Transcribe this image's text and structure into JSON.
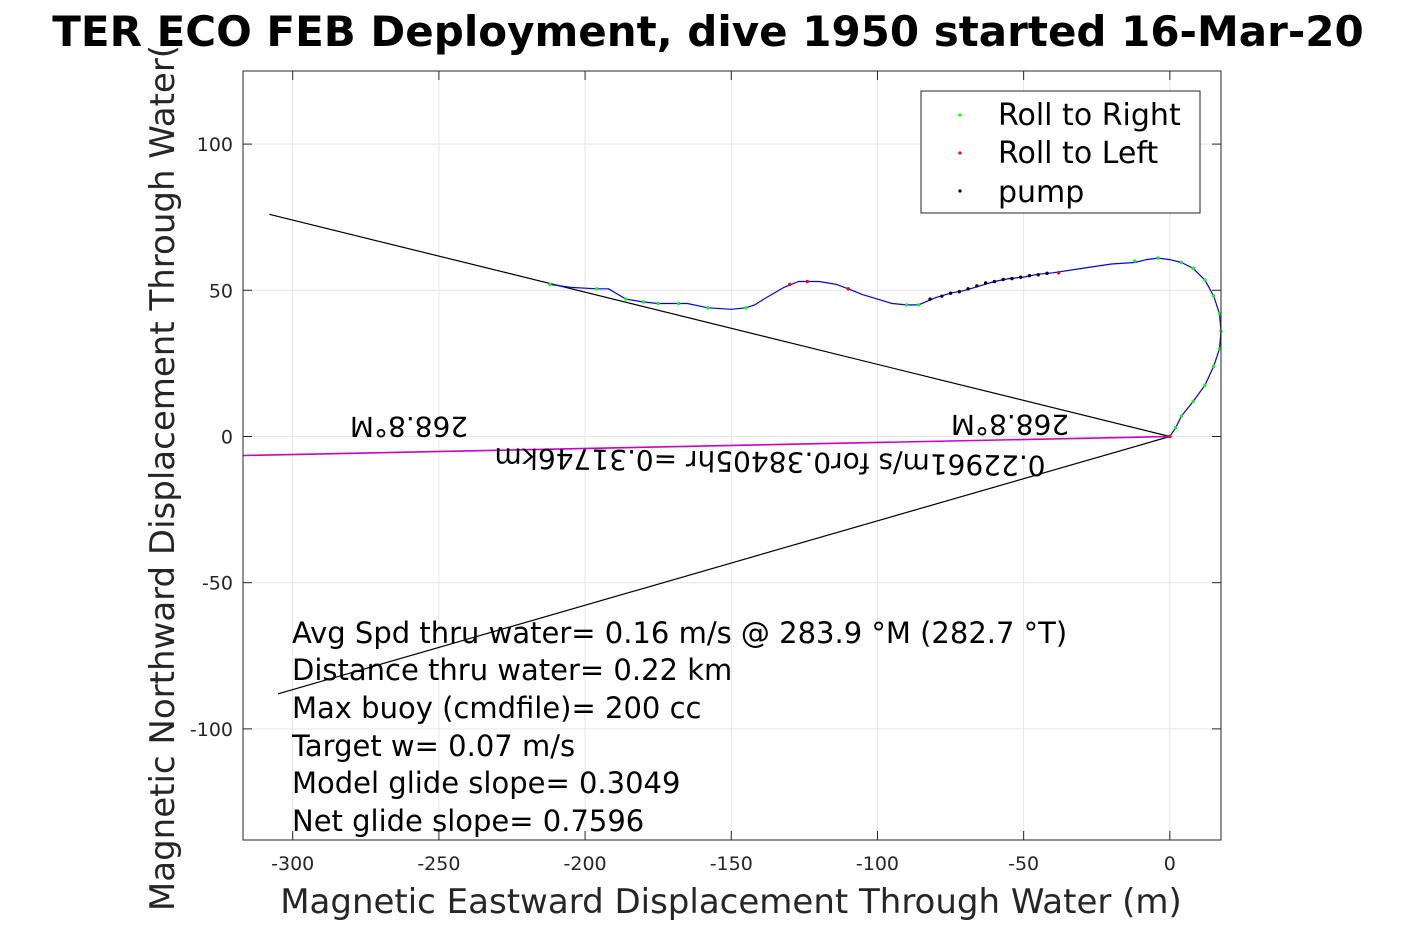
{
  "chart_data": {
    "type": "line",
    "title": "TER ECO FEB Deployment, dive 1950 started 16-Mar-20",
    "xlabel": "Magnetic Eastward Displacement Through Water (m)",
    "ylabel": "Magnetic Northward Displacement Through Water(",
    "xlim": [
      -317,
      17.5
    ],
    "ylim": [
      -138,
      125
    ],
    "xticks": [
      -300,
      -250,
      -200,
      -150,
      -100,
      -50,
      0
    ],
    "yticks": [
      100,
      50,
      0,
      -50,
      -100
    ],
    "grid": true,
    "legend": {
      "placement": "top-right",
      "entries": [
        {
          "label": "Roll to Right",
          "color": "#00ff00"
        },
        {
          "label": "Roll to Left",
          "color": "#ff0000"
        },
        {
          "label": "pump",
          "color": "#000000"
        }
      ]
    },
    "track": {
      "name": "glider track",
      "color": "#0000ff",
      "points": [
        [
          -212,
          52
        ],
        [
          -205,
          51
        ],
        [
          -196,
          50.5
        ],
        [
          -192,
          50.5
        ],
        [
          -186,
          47
        ],
        [
          -180,
          46
        ],
        [
          -175,
          45.5
        ],
        [
          -170,
          45.5
        ],
        [
          -165,
          45.5
        ],
        [
          -158,
          44
        ],
        [
          -150,
          43.5
        ],
        [
          -145,
          44
        ],
        [
          -142,
          45
        ],
        [
          -138,
          47.5
        ],
        [
          -132,
          51
        ],
        [
          -127,
          53
        ],
        [
          -120,
          53
        ],
        [
          -114,
          52
        ],
        [
          -110,
          50.5
        ],
        [
          -105,
          48.5
        ],
        [
          -100,
          47
        ],
        [
          -95,
          45.5
        ],
        [
          -90,
          45
        ],
        [
          -86,
          45
        ],
        [
          -80,
          47.5
        ],
        [
          -75,
          49
        ],
        [
          -70,
          50
        ],
        [
          -65,
          51.5
        ],
        [
          -60,
          53
        ],
        [
          -55,
          54
        ],
        [
          -50,
          54.5
        ],
        [
          -45,
          55.5
        ],
        [
          -40,
          56
        ],
        [
          -30,
          57.5
        ],
        [
          -20,
          59
        ],
        [
          -12,
          59.5
        ],
        [
          -8,
          60.5
        ],
        [
          -4,
          61
        ],
        [
          0,
          60.5
        ],
        [
          4,
          59.5
        ],
        [
          8,
          57.5
        ],
        [
          12,
          53.5
        ],
        [
          15,
          48
        ],
        [
          17,
          42
        ],
        [
          17.5,
          36
        ],
        [
          17,
          30
        ],
        [
          15,
          24
        ],
        [
          12,
          17.5
        ],
        [
          8,
          12
        ],
        [
          4,
          7
        ],
        [
          2,
          3
        ],
        [
          0,
          0
        ]
      ],
      "roll_right": [
        [
          -212,
          52
        ],
        [
          -196,
          50.5
        ],
        [
          -186,
          47
        ],
        [
          -180,
          46
        ],
        [
          -175,
          45.5
        ],
        [
          -168,
          45.5
        ],
        [
          -158,
          44
        ],
        [
          -145,
          44
        ],
        [
          -90,
          45
        ],
        [
          -86,
          45
        ],
        [
          -12,
          60
        ],
        [
          -4,
          61
        ],
        [
          4,
          59.5
        ],
        [
          8,
          57.5
        ],
        [
          12,
          53.5
        ],
        [
          15,
          48
        ],
        [
          17,
          42
        ],
        [
          17.5,
          36
        ],
        [
          17,
          30
        ],
        [
          15,
          24
        ],
        [
          12,
          17.5
        ],
        [
          8,
          12
        ],
        [
          4,
          7
        ],
        [
          2,
          3
        ]
      ],
      "roll_left": [
        [
          -130,
          52
        ],
        [
          -124,
          53
        ],
        [
          -110,
          50.5
        ],
        [
          -38,
          56
        ],
        [
          0,
          0
        ]
      ],
      "pump": [
        [
          -82,
          47
        ],
        [
          -78,
          48
        ],
        [
          -75,
          49
        ],
        [
          -72,
          49.5
        ],
        [
          -69,
          50.5
        ],
        [
          -66,
          51.5
        ],
        [
          -63,
          52.5
        ],
        [
          -60,
          53
        ],
        [
          -57,
          53.7
        ],
        [
          -54,
          54
        ],
        [
          -51,
          54.5
        ],
        [
          -48,
          55
        ],
        [
          -45,
          55.3
        ],
        [
          -42,
          55.8
        ]
      ]
    },
    "lines": [
      {
        "name": "black line to northwest",
        "color": "#000000",
        "from": [
          0,
          0
        ],
        "to": [
          -308,
          76
        ]
      },
      {
        "name": "black line to southwest",
        "color": "#000000",
        "from": [
          0,
          0
        ],
        "to": [
          -305,
          -88
        ]
      },
      {
        "name": "magenta heading line",
        "color": "#cc00cc",
        "from": [
          0,
          0
        ],
        "to": [
          -317,
          -6.5
        ]
      }
    ],
    "direction_labels": {
      "heading_near": "268.8°M",
      "heading_far": "268.8°M",
      "speed_summary": "0.22961m/s for0.38405hr =0.31746km"
    },
    "annotations": [
      "Avg Spd thru water=  0.16 m/s @ 283.9 °M (282.7 °T)",
      "Distance thru water=  0.22 km",
      "Max buoy (cmdfile)= 200 cc",
      "Target w= 0.07 m/s",
      "Model glide slope= 0.3049",
      "Net glide slope= 0.7596"
    ]
  }
}
